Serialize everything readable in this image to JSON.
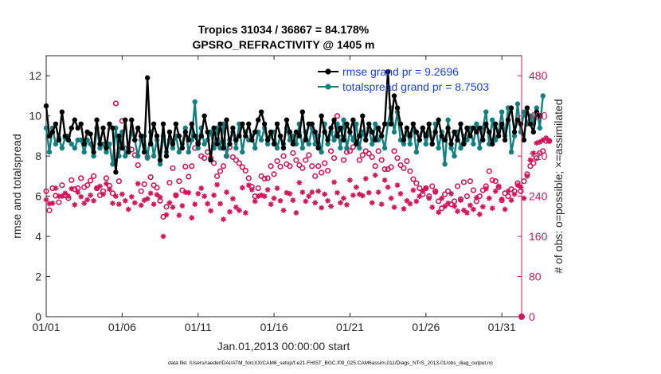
{
  "chart_data": {
    "type": "line",
    "title": "Tropics 31034 / 36867 = 84.178%",
    "subtitle": "GPSRO_REFRACTIVITY @ 1405 m",
    "xlabel": "Jan.01,2013 00:00:00 start",
    "ylabel": "rmse and totalspread",
    "ylabel_right": "# of obs: o=possible; ×=assimilated",
    "footer": "data file: /Users/raeder/DAI/ATM_forcXX/CAM6_setup/f.e21.FHIST_BGC.f09_025.CAM6assim.011/Diags_NTrS_2013-01/obs_diag_output.nc",
    "xlim": [
      0,
      31.3
    ],
    "ylim": [
      0,
      13
    ],
    "ylim_right": [
      0,
      520
    ],
    "x_ticks": [
      0,
      5,
      10,
      15,
      20,
      25,
      30
    ],
    "x_tick_labels": [
      "01/01",
      "01/06",
      "01/11",
      "01/16",
      "01/21",
      "01/26",
      "01/31"
    ],
    "y_ticks": [
      0,
      2,
      4,
      6,
      8,
      10,
      12
    ],
    "y_tick_labels": [
      "0",
      "2",
      "4",
      "6",
      "8",
      "10",
      "12"
    ],
    "y_ticks_right": [
      0,
      80,
      160,
      240,
      320,
      400,
      480
    ],
    "y_tick_labels_right": [
      "0",
      "80",
      "160",
      "240",
      "320",
      "400",
      "480"
    ],
    "legend_position": "top-right",
    "colors": {
      "rmse": "#000000",
      "totalspread": "#128080",
      "counts": "#d4145a",
      "legend_text": "#1a3fe0"
    },
    "series": [
      {
        "name": "rmse grand pr = 9.2696",
        "axis": "left",
        "values": [
          10.5,
          9.0,
          9.2,
          9.6,
          8.8,
          10.2,
          9.0,
          8.8,
          9.4,
          9.8,
          9.4,
          9.6,
          8.6,
          9.2,
          9.1,
          8.2,
          9.8,
          8.6,
          9.4,
          8.4,
          9.6,
          9.4,
          7.2,
          9.0,
          8.4,
          9.8,
          8.2,
          9.8,
          8.8,
          9.4,
          9.0,
          8.2,
          11.9,
          8.6,
          9.6,
          9.0,
          7.8,
          9.6,
          8.0,
          9.2,
          8.6,
          9.6,
          9.0,
          8.4,
          9.2,
          8.8,
          9.6,
          9.0,
          8.6,
          9.0,
          10.0,
          9.2,
          7.8,
          9.4,
          8.6,
          9.6,
          8.4,
          9.8,
          8.6,
          9.4,
          8.8,
          9.0,
          9.6,
          9.0,
          9.6,
          8.8,
          9.2,
          9.8,
          10.2,
          9.6,
          8.8,
          9.2,
          8.6,
          9.6,
          9.0,
          8.4,
          9.8,
          9.2,
          8.6,
          9.2,
          9.0,
          10.2,
          8.8,
          9.6,
          9.6,
          9.2,
          8.4,
          10.0,
          9.2,
          8.8,
          9.4,
          9.8,
          9.0,
          9.4,
          8.8,
          9.6,
          9.2,
          9.8,
          8.6,
          9.0,
          10.0,
          8.8,
          9.6,
          9.2,
          8.8,
          9.4,
          9.0,
          9.6,
          12.2,
          9.6,
          11.0,
          10.4,
          9.6,
          8.8,
          9.4,
          9.0,
          9.6,
          9.2,
          8.8,
          9.4,
          9.0,
          9.6,
          8.6,
          9.2,
          9.8,
          9.0,
          8.8,
          9.4,
          8.6,
          9.2,
          8.8,
          9.6,
          8.6,
          9.4,
          9.0,
          9.4,
          9.2,
          9.4,
          8.8,
          9.6,
          9.2,
          8.6,
          9.6,
          9.0,
          9.6,
          8.8,
          9.8,
          10.4,
          9.2,
          9.8,
          9.6,
          8.8,
          10.4,
          9.6,
          9.2,
          10.2,
          10.0
        ],
        "x_start": 0,
        "x_step": 0.2083
      },
      {
        "name": "totalspread grand pr = 8.7503",
        "axis": "left",
        "values": [
          9.4,
          8.2,
          9.4,
          8.6,
          8.9,
          8.4,
          8.9,
          9.0,
          8.6,
          8.4,
          8.8,
          8.8,
          8.2,
          8.8,
          8.6,
          8.0,
          9.4,
          8.4,
          8.6,
          8.2,
          8.6,
          7.6,
          9.4,
          8.0,
          9.2,
          8.0,
          8.4,
          9.2,
          8.8,
          8.0,
          8.8,
          9.0,
          7.9,
          9.2,
          8.0,
          8.8,
          7.6,
          9.0,
          8.2,
          8.8,
          8.4,
          9.0,
          8.2,
          8.6,
          9.4,
          8.2,
          8.8,
          10.7,
          8.4,
          9.4,
          8.6,
          8.8,
          9.2,
          8.4,
          9.4,
          8.4,
          9.6,
          8.0,
          8.8,
          9.2,
          8.4,
          9.6,
          8.2,
          9.2,
          8.8,
          9.0,
          8.4,
          9.2,
          8.8,
          9.4,
          8.6,
          9.0,
          9.2,
          8.4,
          9.0,
          8.6,
          9.4,
          8.8,
          9.0,
          8.6,
          9.6,
          8.4,
          9.2,
          8.6,
          9.4,
          8.6,
          9.0,
          8.2,
          9.6,
          8.6,
          9.2,
          8.8,
          9.6,
          8.4,
          9.8,
          8.4,
          9.2,
          8.8,
          9.6,
          8.4,
          9.2,
          8.8,
          9.4,
          8.6,
          9.6,
          8.8,
          9.0,
          8.4,
          9.6,
          10.4,
          9.2,
          10.2,
          8.8,
          8.6,
          9.2,
          8.6,
          9.6,
          8.2,
          9.0,
          9.4,
          8.6,
          9.2,
          8.6,
          9.6,
          8.4,
          9.2,
          7.6,
          9.8,
          8.4,
          8.0,
          9.2,
          8.4,
          9.0,
          8.8,
          9.4,
          8.6,
          9.6,
          8.4,
          9.4,
          10.2,
          8.6,
          9.8,
          8.8,
          9.2,
          10.2,
          9.0,
          10.4,
          8.2,
          9.0,
          10.6,
          9.2,
          10.2,
          9.6,
          10.0,
          9.6,
          10.4,
          9.4,
          11.0
        ],
        "x_start": 0,
        "x_step": 0.2083
      },
      {
        "name": "obs possible",
        "axis": "right",
        "values": [
          250,
          212,
          256,
          241,
          228,
          262,
          242,
          236,
          272,
          254,
          256,
          276,
          258,
          262,
          271,
          280,
          256,
          242,
          250,
          276,
          261,
          246,
          425,
          270,
          390,
          335,
          336,
          333,
          322,
          302,
          250,
          264,
          318,
          278,
          262,
          257,
          231,
          199,
          219,
          267,
          296,
          242,
          270,
          252,
          299,
          279,
          300,
          336,
          346,
          320,
          316,
          328,
          316,
          306,
          280,
          290,
          300,
          320,
          338,
          318,
          312,
          306,
          298,
          291,
          276,
          259,
          240,
          256,
          280,
          275,
          276,
          300,
          284,
          310,
          299,
          320,
          304,
          300,
          326,
          312,
          302,
          296,
          312,
          322,
          300,
          280,
          300,
          287,
          306,
          291,
          330,
          316,
          400,
          356,
          312,
          328,
          330,
          338,
          347,
          312,
          322,
          330,
          325,
          318,
          300,
          330,
          312,
          294,
          294,
          298,
          330,
          316,
          302,
          296,
          310,
          290,
          274,
          266,
          256,
          244,
          256,
          240,
          260,
          250,
          230,
          216,
          244,
          250,
          224,
          230,
          260,
          234,
          268,
          240,
          270,
          252,
          230,
          240,
          252,
          260,
          290,
          272,
          270,
          258,
          232,
          246,
          240,
          254,
          250,
          266,
          250,
          270,
          284,
          300,
          306,
          316,
          326,
          330,
          350,
          350
        ],
        "x_start": 0,
        "x_step": 0.2083
      },
      {
        "name": "obs assimilated",
        "axis": "right",
        "values": [
          233,
          225,
          226,
          256,
          240,
          240,
          246,
          240,
          255,
          223,
          248,
          239,
          226,
          233,
          242,
          231,
          256,
          260,
          244,
          265,
          254,
          226,
          240,
          224,
          244,
          231,
          214,
          239,
          227,
          265,
          222,
          232,
          235,
          246,
          224,
          243,
          238,
          160,
          203,
          227,
          218,
          241,
          202,
          221,
          248,
          247,
          197,
          224,
          245,
          256,
          240,
          225,
          211,
          242,
          263,
          225,
          194,
          248,
          209,
          235,
          218,
          212,
          257,
          207,
          262,
          253,
          230,
          240,
          242,
          240,
          253,
          224,
          236,
          256,
          231,
          212,
          247,
          245,
          232,
          207,
          267,
          248,
          230,
          240,
          248,
          227,
          250,
          217,
          244,
          231,
          220,
          268,
          247,
          227,
          236,
          223,
          272,
          242,
          258,
          244,
          241,
          275,
          247,
          227,
          282,
          248,
          224,
          272,
          258,
          236,
          218,
          262,
          245,
          215,
          231,
          225,
          252,
          230,
          240,
          250,
          256,
          236,
          218,
          248,
          208,
          236,
          220,
          226,
          245,
          220,
          210,
          232,
          212,
          207,
          222,
          214,
          237,
          204,
          219,
          255,
          236,
          216,
          250,
          260,
          234,
          214,
          250,
          232,
          244,
          262,
          258,
          236,
          280,
          312,
          326,
          346,
          348,
          352,
          356,
          350
        ],
        "x_start": 0,
        "x_step": 0.2083
      }
    ]
  }
}
